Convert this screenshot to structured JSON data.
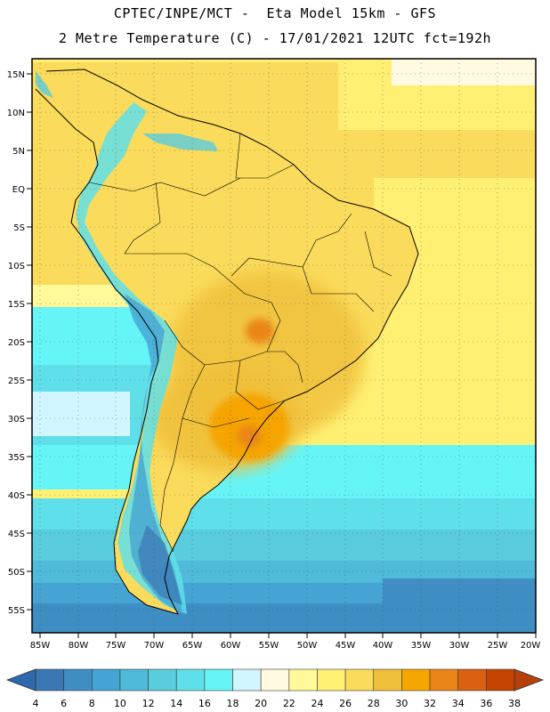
{
  "header": {
    "line1": "CPTEC/INPE/MCT -  Eta Model 15km - GFS",
    "line2": "2 Metre Temperature (C) - 17/01/2021 12UTC fct=192h"
  },
  "map": {
    "lat_labels": [
      "15N",
      "10N",
      "5N",
      "EQ",
      "5S",
      "10S",
      "15S",
      "20S",
      "25S",
      "30S",
      "35S",
      "40S",
      "45S",
      "50S",
      "55S"
    ],
    "lon_labels": [
      "85W",
      "80W",
      "75W",
      "70W",
      "65W",
      "60W",
      "55W",
      "50W",
      "45W",
      "40W",
      "35W",
      "30W",
      "25W",
      "20W"
    ],
    "extent": {
      "lon_min": -85.5,
      "lon_max": -19.5,
      "lat_min": -58,
      "lat_max": 16
    }
  },
  "colorbar": {
    "ticks": [
      "4",
      "6",
      "8",
      "10",
      "12",
      "14",
      "16",
      "18",
      "20",
      "22",
      "24",
      "26",
      "28",
      "30",
      "32",
      "34",
      "36",
      "38"
    ],
    "colors": [
      "#3a77b4",
      "#3e8ec4",
      "#45a4d3",
      "#4fbad9",
      "#59ccde",
      "#5fdfe9",
      "#66f5f7",
      "#d2f6ff",
      "#fffae0",
      "#fff99a",
      "#fff073",
      "#fadb5b",
      "#f0c03a",
      "#f5a400",
      "#ea8518",
      "#db6011",
      "#c54404"
    ],
    "low_color": "#2e69ad",
    "high_color": "#b6400a"
  }
}
